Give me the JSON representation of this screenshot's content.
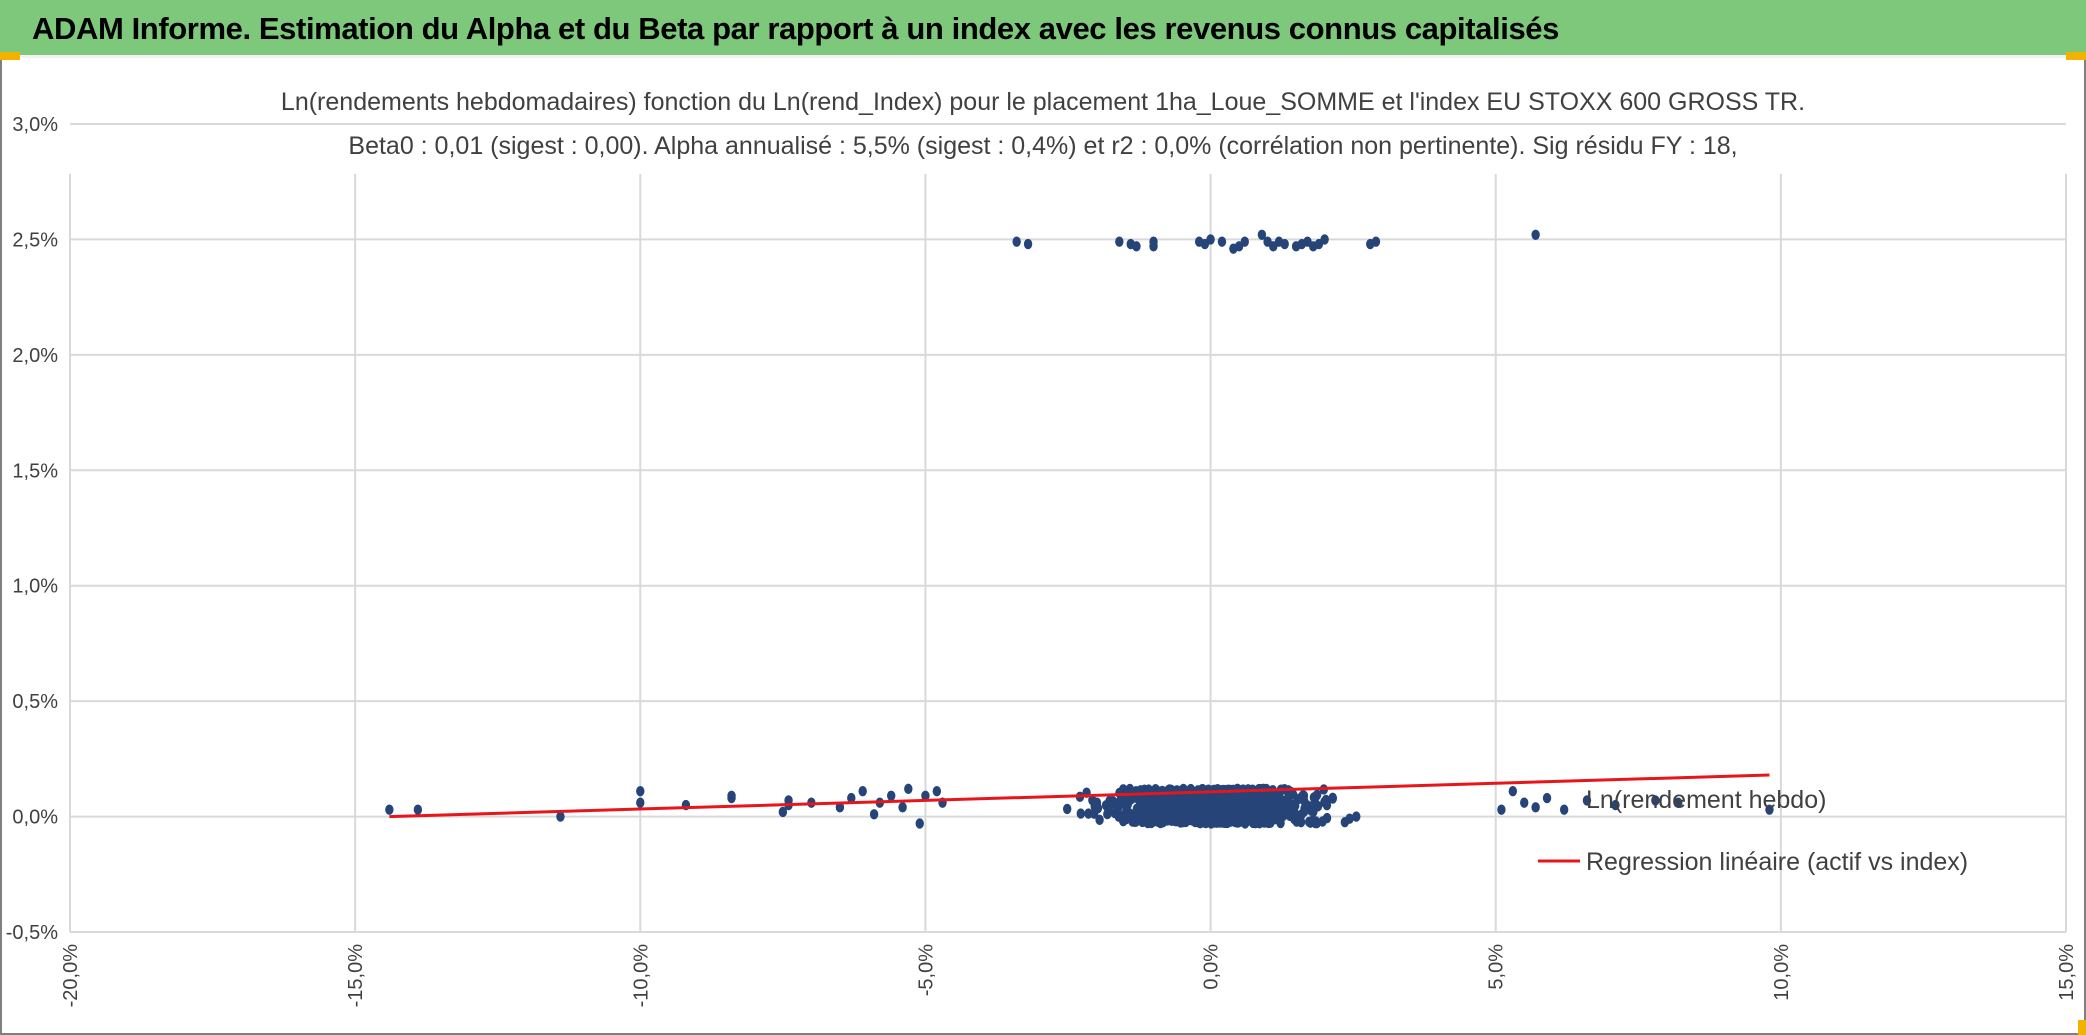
{
  "banner": {
    "title": "ADAM Informe. Estimation du Alpha et du Beta par rapport à un index avec les revenus connus capitalisés"
  },
  "colors": {
    "banner": "#7ec87b",
    "points": "#264478",
    "regression": "#e8161b",
    "grid": "#d9d9d9",
    "corner": "#f2b200"
  },
  "chart_data": {
    "type": "scatter",
    "title": "Ln(rendements hebdomadaires) fonction du Ln(rend_Index) pour le placement 1ha_Loue_SOMME et l'index EU STOXX 600 GROSS TR.",
    "subtitle": "Beta0 : 0,01 (sigest : 0,00). Alpha annualisé : 5,5% (sigest : 0,4%) et r2 : 0,0% (corrélation non pertinente). Sig résidu FY : 18,",
    "xlim": [
      -0.2,
      0.15
    ],
    "ylim": [
      -0.005,
      0.03
    ],
    "x_ticks": [
      -0.2,
      -0.15,
      -0.1,
      -0.05,
      0.0,
      0.05,
      0.1,
      0.15
    ],
    "y_ticks": [
      -0.005,
      0.0,
      0.005,
      0.01,
      0.015,
      0.02,
      0.025,
      0.03
    ],
    "x_tick_labels": [
      "-20,0%",
      "-15,0%",
      "-10,0%",
      "-5,0%",
      "0,0%",
      "5,0%",
      "10,0%",
      "15,0%"
    ],
    "y_tick_labels": [
      "-0,5%",
      "0,0%",
      "0,5%",
      "1,0%",
      "1,5%",
      "2,0%",
      "2,5%",
      "3,0%"
    ],
    "grid": true,
    "legend_position": "right",
    "series": [
      {
        "name": "Ln(rendement hebdo)",
        "kind": "scatter",
        "cluster_low": {
          "x_range": [
            -0.045,
            0.07
          ],
          "x_center": 0.0,
          "y_range": [
            -0.0003,
            0.0012
          ],
          "count": 900
        },
        "points": [
          [
            -0.144,
            0.0003
          ],
          [
            -0.139,
            0.0003
          ],
          [
            -0.114,
            0.0
          ],
          [
            -0.1,
            0.0011
          ],
          [
            -0.1,
            0.0006
          ],
          [
            -0.092,
            0.0005
          ],
          [
            -0.084,
            0.0008
          ],
          [
            -0.084,
            0.0009
          ],
          [
            -0.075,
            0.0002
          ],
          [
            -0.074,
            0.0007
          ],
          [
            -0.074,
            0.0005
          ],
          [
            -0.07,
            0.0006
          ],
          [
            -0.065,
            0.0004
          ],
          [
            -0.063,
            0.0008
          ],
          [
            -0.061,
            0.0011
          ],
          [
            -0.059,
            0.0001
          ],
          [
            -0.058,
            0.0006
          ],
          [
            -0.056,
            0.0009
          ],
          [
            -0.054,
            0.0004
          ],
          [
            -0.053,
            0.0012
          ],
          [
            -0.051,
            -0.0003
          ],
          [
            -0.05,
            0.0009
          ],
          [
            -0.048,
            0.0011
          ],
          [
            -0.047,
            0.0006
          ],
          [
            0.051,
            0.0003
          ],
          [
            0.053,
            0.0011
          ],
          [
            0.055,
            0.0006
          ],
          [
            0.057,
            0.0004
          ],
          [
            0.059,
            0.0008
          ],
          [
            0.062,
            0.0003
          ],
          [
            0.066,
            0.0007
          ],
          [
            0.071,
            0.0005
          ],
          [
            0.078,
            0.0007
          ],
          [
            0.082,
            0.0006
          ],
          [
            0.098,
            0.0003
          ]
        ],
        "upper_points": [
          [
            -0.034,
            0.0249
          ],
          [
            -0.032,
            0.0248
          ],
          [
            -0.016,
            0.0249
          ],
          [
            -0.014,
            0.0248
          ],
          [
            -0.013,
            0.0247
          ],
          [
            -0.01,
            0.0249
          ],
          [
            -0.01,
            0.0247
          ],
          [
            -0.002,
            0.0249
          ],
          [
            -0.001,
            0.0248
          ],
          [
            0.0,
            0.025
          ],
          [
            0.002,
            0.0249
          ],
          [
            0.004,
            0.0246
          ],
          [
            0.005,
            0.0247
          ],
          [
            0.006,
            0.0249
          ],
          [
            0.009,
            0.0252
          ],
          [
            0.01,
            0.0249
          ],
          [
            0.011,
            0.0247
          ],
          [
            0.012,
            0.0249
          ],
          [
            0.013,
            0.0248
          ],
          [
            0.015,
            0.0247
          ],
          [
            0.016,
            0.0248
          ],
          [
            0.017,
            0.0249
          ],
          [
            0.018,
            0.0247
          ],
          [
            0.019,
            0.0248
          ],
          [
            0.02,
            0.025
          ],
          [
            0.028,
            0.0248
          ],
          [
            0.029,
            0.0249
          ],
          [
            0.057,
            0.0252
          ]
        ]
      },
      {
        "name": "Regression linéaire (actif vs index)",
        "kind": "line",
        "x": [
          -0.144,
          0.098
        ],
        "y": [
          0.0,
          0.0018
        ]
      }
    ]
  }
}
